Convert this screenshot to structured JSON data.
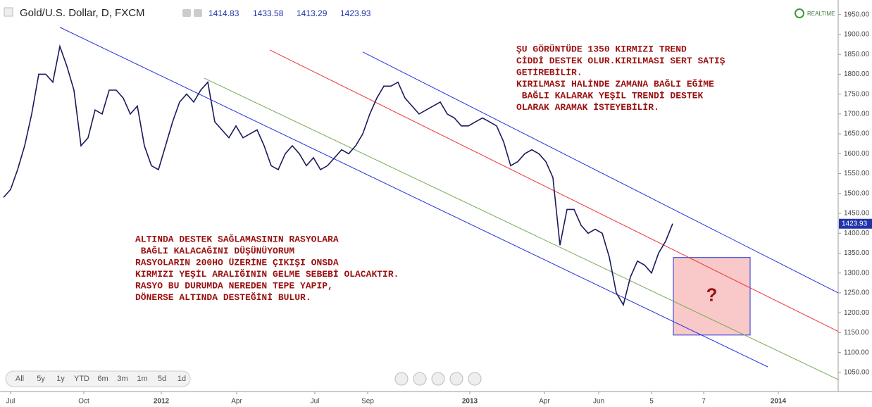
{
  "header": {
    "title": "Gold/U.S. Dollar, D, FXCM",
    "ohlc": [
      1414.83,
      1433.58,
      1413.29,
      1423.93
    ],
    "realtime": "REALTIME"
  },
  "chart_data": {
    "type": "line",
    "color": "#1a1a5e",
    "values": [
      1490,
      1510,
      1560,
      1620,
      1700,
      1800,
      1800,
      1780,
      1870,
      1820,
      1760,
      1620,
      1640,
      1710,
      1700,
      1760,
      1760,
      1740,
      1700,
      1720,
      1620,
      1570,
      1560,
      1620,
      1680,
      1730,
      1750,
      1730,
      1760,
      1780,
      1680,
      1660,
      1640,
      1670,
      1640,
      1650,
      1660,
      1620,
      1570,
      1560,
      1600,
      1620,
      1600,
      1570,
      1590,
      1560,
      1570,
      1590,
      1610,
      1600,
      1620,
      1650,
      1700,
      1740,
      1770,
      1770,
      1780,
      1740,
      1720,
      1700,
      1710,
      1720,
      1730,
      1700,
      1690,
      1670,
      1670,
      1680,
      1690,
      1680,
      1670,
      1630,
      1570,
      1580,
      1600,
      1610,
      1600,
      1580,
      1540,
      1370,
      1460,
      1460,
      1420,
      1400,
      1410,
      1400,
      1340,
      1250,
      1220,
      1290,
      1330,
      1320,
      1300,
      1350,
      1380,
      1423.93
    ],
    "xlim": [
      -0.5,
      118.5
    ],
    "xticks": [
      {
        "value": 1,
        "label": "Jul"
      },
      {
        "value": 11.4,
        "label": "Oct"
      },
      {
        "value": 22.4,
        "label": "2012"
      },
      {
        "value": 33.1,
        "label": "Apr"
      },
      {
        "value": 44.2,
        "label": "Jul"
      },
      {
        "value": 51.7,
        "label": "Sep"
      },
      {
        "value": 66.2,
        "label": "2013"
      },
      {
        "value": 76.8,
        "label": "Apr"
      },
      {
        "value": 84.5,
        "label": "Jun"
      },
      {
        "value": 92,
        "label": "5"
      },
      {
        "value": 99.4,
        "label": "7"
      },
      {
        "value": 110,
        "label": "2014"
      }
    ],
    "ylim": [
      1002,
      1976
    ],
    "yticks": [
      {
        "value": 1050,
        "label": "1050.00"
      },
      {
        "value": 1100,
        "label": "1100.00"
      },
      {
        "value": 1150,
        "label": "1150.00"
      },
      {
        "value": 1200,
        "label": "1200.00"
      },
      {
        "value": 1250,
        "label": "1250.00"
      },
      {
        "value": 1300,
        "label": "1300.00"
      },
      {
        "value": 1350,
        "label": "1350.00"
      },
      {
        "value": 1400,
        "label": "1400.00"
      },
      {
        "value": 1450,
        "label": "1450.00"
      },
      {
        "value": 1500,
        "label": "1500.00"
      },
      {
        "value": 1550,
        "label": "1550.00"
      },
      {
        "value": 1600,
        "label": "1600.00"
      },
      {
        "value": 1650,
        "label": "1650.00"
      },
      {
        "value": 1700,
        "label": "1700.00"
      },
      {
        "value": 1750,
        "label": "1750.00"
      },
      {
        "value": 1800,
        "label": "1800.00"
      },
      {
        "value": 1850,
        "label": "1850.00"
      },
      {
        "value": 1900,
        "label": "1900.00"
      },
      {
        "value": 1950,
        "label": "1950.00"
      }
    ],
    "trendlines": [
      {
        "color": "#2233dd",
        "points": [
          [
            8,
            1918
          ],
          [
            108.5,
            1064
          ]
        ]
      },
      {
        "color": "#77aa55",
        "points": [
          [
            28.5,
            1790
          ],
          [
            118.5,
            1032
          ]
        ]
      },
      {
        "color": "#ee3333",
        "points": [
          [
            37.8,
            1861
          ],
          [
            118.5,
            1153
          ]
        ]
      },
      {
        "color": "#2233dd",
        "points": [
          [
            51,
            1856
          ],
          [
            118.5,
            1250
          ]
        ]
      }
    ],
    "box": {
      "x": [
        95.1,
        106
      ],
      "y": [
        1144,
        1339
      ],
      "label": "?"
    },
    "annotations": [
      [
        "ŞU GÖRÜNTÜDE 1350 KIRMIZI TREND",
        "CİDDİ DESTEK OLUR.KIRILMASI SERT SATIŞ",
        "GETİREBİLİR.",
        "KIRILMASI HALİNDE ZAMANA BAĞLI EĞİME",
        " BAĞLI KALARAK YEŞİL TRENDİ DESTEK",
        "OLARAK ARAMAK İSTEYEBİLİR."
      ],
      [
        "ALTINDA DESTEK SAĞLAMASININ RASYOLARA",
        " BAĞLI KALACAĞINI DÜŞÜNÜYORUM",
        "RASYOLARIN 200HO ÜZERİNE ÇIKIŞI ONSDA",
        "KIRMIZI YEŞİL ARALIĞININ GELME SEBEBİ OLACAKTIR.",
        "RASYO BU DURUMDA NEREDEN TEPE YAPIP,",
        "DÖNERSE ALTINDA DESTEĞİNİ BULUR."
      ]
    ]
  },
  "range_buttons": [
    "All",
    "5y",
    "1y",
    "YTD",
    "6m",
    "3m",
    "1m",
    "5d",
    "1d"
  ]
}
